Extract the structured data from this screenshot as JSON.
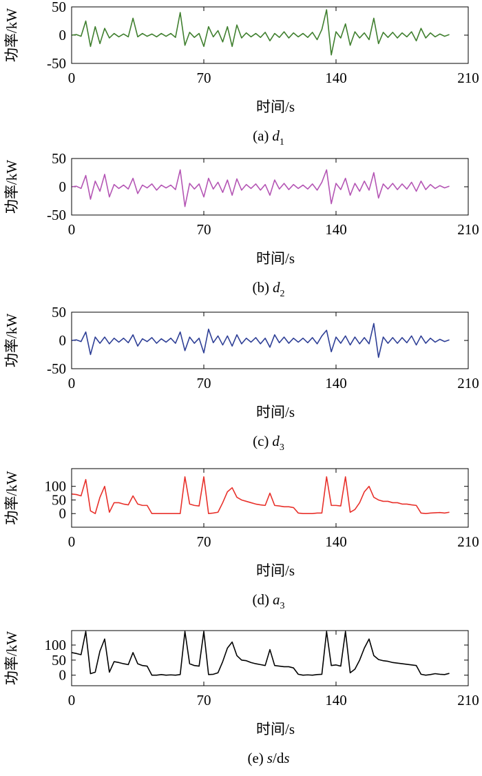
{
  "chart_data": [
    {
      "type": "line",
      "ylabel": "功率/kW",
      "xlabel": "时间/s",
      "caption": [
        "(a)",
        "d",
        "1"
      ],
      "xlim": [
        0,
        210
      ],
      "xticks": [
        0,
        70,
        140,
        210
      ],
      "ylim": [
        -50,
        50
      ],
      "yticks": [
        -50,
        0,
        50
      ],
      "x": [
        0,
        2.5,
        5,
        7.5,
        10,
        12.5,
        15,
        17.5,
        20,
        22.5,
        25,
        27.5,
        30,
        32.5,
        35,
        37.5,
        40,
        42.5,
        45,
        47.5,
        50,
        52.5,
        55,
        57.5,
        60,
        62.5,
        65,
        67.5,
        70,
        72.5,
        75,
        77.5,
        80,
        82.5,
        85,
        87.5,
        90,
        92.5,
        95,
        97.5,
        100,
        102.5,
        105,
        107.5,
        110,
        112.5,
        115,
        117.5,
        120,
        122.5,
        125,
        127.5,
        130,
        132.5,
        135,
        137.5,
        140,
        142.5,
        145,
        147.5,
        150,
        152.5,
        155,
        157.5,
        160,
        162.5,
        165,
        167.5,
        170,
        172.5,
        175,
        177.5,
        180,
        182.5,
        185,
        187.5,
        190,
        192.5,
        195,
        197.5,
        200
      ],
      "series": [
        {
          "color": "#3f7f2e",
          "values": [
            0,
            1,
            -2,
            25,
            -20,
            15,
            -15,
            12,
            -5,
            3,
            -3,
            2,
            -3,
            30,
            -3,
            3,
            -2,
            2,
            -3,
            3,
            -2,
            3,
            -4,
            40,
            -18,
            5,
            -4,
            3,
            -20,
            15,
            -3,
            8,
            -12,
            15,
            -20,
            18,
            -5,
            4,
            -3,
            3,
            -4,
            5,
            -10,
            3,
            -4,
            6,
            -5,
            4,
            -3,
            3,
            -4,
            5,
            -8,
            10,
            45,
            -35,
            6,
            -5,
            20,
            -18,
            6,
            -5,
            4,
            -8,
            30,
            -15,
            5,
            -4,
            5,
            -5,
            4,
            -3,
            6,
            -10,
            12,
            -5,
            4,
            -3,
            2,
            -2,
            1
          ]
        }
      ]
    },
    {
      "type": "line",
      "ylabel": "功率/kW",
      "xlabel": "时间/s",
      "caption": [
        "(b)",
        "d",
        "2"
      ],
      "xlim": [
        0,
        210
      ],
      "xticks": [
        0,
        70,
        140,
        210
      ],
      "ylim": [
        -50,
        50
      ],
      "yticks": [
        -50,
        0,
        50
      ],
      "x": [
        0,
        2.5,
        5,
        7.5,
        10,
        12.5,
        15,
        17.5,
        20,
        22.5,
        25,
        27.5,
        30,
        32.5,
        35,
        37.5,
        40,
        42.5,
        45,
        47.5,
        50,
        52.5,
        55,
        57.5,
        60,
        62.5,
        65,
        67.5,
        70,
        72.5,
        75,
        77.5,
        80,
        82.5,
        85,
        87.5,
        90,
        92.5,
        95,
        97.5,
        100,
        102.5,
        105,
        107.5,
        110,
        112.5,
        115,
        117.5,
        120,
        122.5,
        125,
        127.5,
        130,
        132.5,
        135,
        137.5,
        140,
        142.5,
        145,
        147.5,
        150,
        152.5,
        155,
        157.5,
        160,
        162.5,
        165,
        167.5,
        170,
        172.5,
        175,
        177.5,
        180,
        182.5,
        185,
        187.5,
        190,
        192.5,
        195,
        197.5,
        200
      ],
      "series": [
        {
          "color": "#b455b4",
          "values": [
            0,
            1,
            -3,
            20,
            -22,
            10,
            -8,
            22,
            -18,
            4,
            -3,
            3,
            -4,
            15,
            -12,
            3,
            -2,
            5,
            -6,
            3,
            -2,
            3,
            -5,
            30,
            -35,
            6,
            -4,
            5,
            -18,
            15,
            -4,
            8,
            -10,
            12,
            -15,
            14,
            -6,
            4,
            -3,
            5,
            -6,
            4,
            -15,
            12,
            -4,
            6,
            -5,
            4,
            -3,
            3,
            -4,
            5,
            -6,
            8,
            30,
            -30,
            6,
            -5,
            15,
            -15,
            6,
            -8,
            10,
            -6,
            25,
            -20,
            5,
            -4,
            6,
            -5,
            5,
            -4,
            8,
            -8,
            10,
            -5,
            4,
            -3,
            2,
            -2,
            1
          ]
        }
      ]
    },
    {
      "type": "line",
      "ylabel": "功率/kW",
      "xlabel": "时间/s",
      "caption": [
        "(c)",
        "d",
        "3"
      ],
      "xlim": [
        0,
        210
      ],
      "xticks": [
        0,
        70,
        140,
        210
      ],
      "ylim": [
        -50,
        50
      ],
      "yticks": [
        -50,
        0,
        50
      ],
      "x": [
        0,
        2.5,
        5,
        7.5,
        10,
        12.5,
        15,
        17.5,
        20,
        22.5,
        25,
        27.5,
        30,
        32.5,
        35,
        37.5,
        40,
        42.5,
        45,
        47.5,
        50,
        52.5,
        55,
        57.5,
        60,
        62.5,
        65,
        67.5,
        70,
        72.5,
        75,
        77.5,
        80,
        82.5,
        85,
        87.5,
        90,
        92.5,
        95,
        97.5,
        100,
        102.5,
        105,
        107.5,
        110,
        112.5,
        115,
        117.5,
        120,
        122.5,
        125,
        127.5,
        130,
        132.5,
        135,
        137.5,
        140,
        142.5,
        145,
        147.5,
        150,
        152.5,
        155,
        157.5,
        160,
        162.5,
        165,
        167.5,
        170,
        172.5,
        175,
        177.5,
        180,
        182.5,
        185,
        187.5,
        190,
        192.5,
        195,
        197.5,
        200
      ],
      "series": [
        {
          "color": "#2e3f96",
          "values": [
            0,
            1,
            -2,
            15,
            -25,
            6,
            -5,
            6,
            -6,
            4,
            -3,
            4,
            -4,
            10,
            -10,
            3,
            -2,
            5,
            -5,
            3,
            -3,
            4,
            -5,
            15,
            -18,
            6,
            -5,
            4,
            -22,
            20,
            -4,
            8,
            -8,
            8,
            -10,
            10,
            -6,
            4,
            -3,
            5,
            -6,
            4,
            -12,
            10,
            -4,
            6,
            -5,
            4,
            -3,
            4,
            -4,
            5,
            -6,
            8,
            18,
            -20,
            6,
            -5,
            8,
            -8,
            6,
            -6,
            5,
            -6,
            30,
            -30,
            6,
            -5,
            5,
            -5,
            5,
            -4,
            8,
            -8,
            8,
            -5,
            4,
            -3,
            2,
            -2,
            1
          ]
        }
      ]
    },
    {
      "type": "line",
      "ylabel": "功率/kW",
      "xlabel": "时间/s",
      "caption": [
        "(d)",
        "a",
        "3"
      ],
      "xlim": [
        0,
        210
      ],
      "xticks": [
        0,
        70,
        140,
        210
      ],
      "ylim": [
        -50,
        165
      ],
      "yticks": [
        0,
        50,
        100
      ],
      "x": [
        0,
        2.5,
        5,
        7.5,
        10,
        12.5,
        15,
        17.5,
        20,
        22.5,
        25,
        27.5,
        30,
        32.5,
        35,
        37.5,
        40,
        42.5,
        45,
        47.5,
        50,
        52.5,
        55,
        57.5,
        60,
        62.5,
        65,
        67.5,
        70,
        72.5,
        75,
        77.5,
        80,
        82.5,
        85,
        87.5,
        90,
        92.5,
        95,
        97.5,
        100,
        102.5,
        105,
        107.5,
        110,
        112.5,
        115,
        117.5,
        120,
        122.5,
        125,
        127.5,
        130,
        132.5,
        135,
        137.5,
        140,
        142.5,
        145,
        147.5,
        150,
        152.5,
        155,
        157.5,
        160,
        162.5,
        165,
        167.5,
        170,
        172.5,
        175,
        177.5,
        180,
        182.5,
        185,
        187.5,
        190,
        192.5,
        195,
        197.5,
        200
      ],
      "series": [
        {
          "color": "#e8302a",
          "values": [
            72,
            70,
            65,
            125,
            10,
            0,
            60,
            100,
            5,
            40,
            40,
            35,
            32,
            65,
            35,
            30,
            30,
            0,
            0,
            0,
            0,
            0,
            0,
            0,
            135,
            35,
            30,
            28,
            135,
            0,
            2,
            5,
            40,
            80,
            95,
            60,
            50,
            45,
            40,
            35,
            32,
            30,
            75,
            30,
            28,
            25,
            25,
            22,
            2,
            0,
            0,
            0,
            2,
            2,
            135,
            30,
            30,
            28,
            135,
            5,
            15,
            40,
            80,
            100,
            60,
            50,
            45,
            45,
            40,
            40,
            35,
            35,
            32,
            30,
            2,
            0,
            2,
            3,
            4,
            2,
            5
          ]
        }
      ]
    },
    {
      "type": "line",
      "ylabel": "功率/kW",
      "xlabel": "时间/s",
      "caption": [
        "(e)",
        "s",
        "/d",
        "s"
      ],
      "xlim": [
        0,
        210
      ],
      "xticks": [
        0,
        70,
        140,
        210
      ],
      "ylim": [
        -35,
        148
      ],
      "yticks": [
        0,
        50,
        100
      ],
      "x": [
        0,
        2.5,
        5,
        7.5,
        10,
        12.5,
        15,
        17.5,
        20,
        22.5,
        25,
        27.5,
        30,
        32.5,
        35,
        37.5,
        40,
        42.5,
        45,
        47.5,
        50,
        52.5,
        55,
        57.5,
        60,
        62.5,
        65,
        67.5,
        70,
        72.5,
        75,
        77.5,
        80,
        82.5,
        85,
        87.5,
        90,
        92.5,
        95,
        97.5,
        100,
        102.5,
        105,
        107.5,
        110,
        112.5,
        115,
        117.5,
        120,
        122.5,
        125,
        127.5,
        130,
        132.5,
        135,
        137.5,
        140,
        142.5,
        145,
        147.5,
        150,
        152.5,
        155,
        157.5,
        160,
        162.5,
        165,
        167.5,
        170,
        172.5,
        175,
        177.5,
        180,
        182.5,
        185,
        187.5,
        190,
        192.5,
        195,
        197.5,
        200
      ],
      "series": [
        {
          "color": "#000000",
          "values": [
            75,
            72,
            68,
            145,
            5,
            10,
            80,
            120,
            10,
            45,
            42,
            38,
            35,
            75,
            38,
            32,
            30,
            0,
            0,
            2,
            0,
            1,
            0,
            2,
            145,
            38,
            32,
            30,
            145,
            2,
            3,
            8,
            45,
            90,
            110,
            65,
            50,
            48,
            42,
            38,
            35,
            32,
            85,
            32,
            30,
            28,
            28,
            24,
            3,
            0,
            1,
            0,
            2,
            3,
            145,
            32,
            34,
            30,
            145,
            8,
            20,
            50,
            90,
            120,
            65,
            52,
            48,
            46,
            42,
            40,
            38,
            36,
            34,
            32,
            3,
            0,
            2,
            5,
            3,
            2,
            6
          ]
        }
      ]
    }
  ]
}
